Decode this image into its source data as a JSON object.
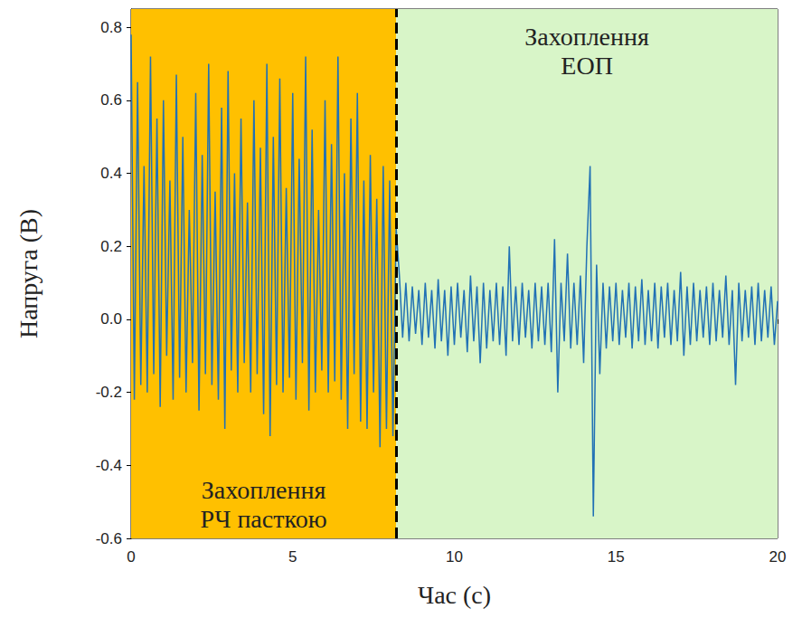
{
  "chart_data": {
    "type": "line",
    "x_label": "Час (с)",
    "y_label": "Напруга (В)",
    "xlim": [
      0,
      20
    ],
    "xticks": [
      0,
      5,
      10,
      15,
      20
    ],
    "ylim": [
      -0.6,
      0.85
    ],
    "yticks": [
      -0.6,
      -0.4,
      -0.2,
      {
        "value": 0,
        "label": "0.0"
      },
      0.2,
      0.4,
      0.6,
      0.8
    ],
    "grid": false,
    "color": "#2171b5",
    "regions": [
      {
        "label": "Захоплення РЧ пасткою",
        "start": 0,
        "end": 8.2,
        "color": "#ffc000"
      },
      {
        "label": "Захоплення ЕОП",
        "start": 8.2,
        "end": 20,
        "color": "#d8f5c8"
      }
    ],
    "divider": 8.2,
    "x": [
      0,
      0.1,
      0.2,
      0.3,
      0.4,
      0.5,
      0.6,
      0.7,
      0.8,
      0.9,
      1,
      1.1,
      1.2,
      1.3,
      1.4,
      1.5,
      1.6,
      1.7,
      1.8,
      1.9,
      2,
      2.1,
      2.2,
      2.3,
      2.4,
      2.5,
      2.6,
      2.7,
      2.8,
      2.9,
      3,
      3.1,
      3.2,
      3.3,
      3.4,
      3.5,
      3.6,
      3.7,
      3.8,
      3.9,
      4,
      4.1,
      4.2,
      4.3,
      4.4,
      4.5,
      4.6,
      4.7,
      4.8,
      4.9,
      5,
      5.1,
      5.2,
      5.3,
      5.4,
      5.5,
      5.6,
      5.7,
      5.8,
      5.9,
      6,
      6.1,
      6.2,
      6.3,
      6.4,
      6.5,
      6.6,
      6.7,
      6.8,
      6.9,
      7,
      7.1,
      7.2,
      7.3,
      7.4,
      7.5,
      7.6,
      7.7,
      7.8,
      7.9,
      8,
      8.1,
      8.2,
      8.3,
      8.4,
      8.5,
      8.6,
      8.7,
      8.8,
      8.9,
      9,
      9.1,
      9.2,
      9.3,
      9.4,
      9.5,
      9.6,
      9.7,
      9.8,
      9.9,
      10,
      10.1,
      10.2,
      10.3,
      10.4,
      10.5,
      10.6,
      10.7,
      10.8,
      10.9,
      11,
      11.1,
      11.2,
      11.3,
      11.4,
      11.5,
      11.6,
      11.7,
      11.8,
      11.9,
      12,
      12.1,
      12.2,
      12.3,
      12.4,
      12.5,
      12.6,
      12.7,
      12.8,
      12.9,
      13,
      13.1,
      13.2,
      13.3,
      13.4,
      13.5,
      13.6,
      13.7,
      13.8,
      13.9,
      14,
      14.1,
      14.2,
      14.3,
      14.4,
      14.5,
      14.6,
      14.7,
      14.8,
      14.9,
      15,
      15.1,
      15.2,
      15.3,
      15.4,
      15.5,
      15.6,
      15.7,
      15.8,
      15.9,
      16,
      16.1,
      16.2,
      16.3,
      16.4,
      16.5,
      16.6,
      16.7,
      16.8,
      16.9,
      17,
      17.1,
      17.2,
      17.3,
      17.4,
      17.5,
      17.6,
      17.7,
      17.8,
      17.9,
      18,
      18.1,
      18.2,
      18.3,
      18.4,
      18.5,
      18.6,
      18.7,
      18.8,
      18.9,
      19,
      19.1,
      19.2,
      19.3,
      19.4,
      19.5,
      19.6,
      19.7,
      19.8,
      19.9,
      20
    ],
    "values": [
      0.78,
      -0.22,
      0.65,
      -0.18,
      0.42,
      -0.2,
      0.72,
      -0.15,
      0.55,
      -0.24,
      0.6,
      -0.1,
      0.38,
      -0.22,
      0.67,
      -0.16,
      0.5,
      -0.2,
      0.3,
      -0.12,
      0.62,
      -0.25,
      0.45,
      -0.15,
      0.7,
      -0.18,
      0.35,
      -0.22,
      0.58,
      -0.3,
      0.68,
      -0.14,
      0.4,
      -0.2,
      0.55,
      -0.12,
      0.32,
      -0.2,
      0.6,
      -0.15,
      0.47,
      -0.26,
      0.7,
      -0.32,
      0.5,
      -0.18,
      0.66,
      -0.2,
      0.36,
      -0.16,
      0.62,
      -0.22,
      0.44,
      -0.12,
      0.72,
      -0.25,
      0.52,
      -0.2,
      0.3,
      -0.14,
      0.6,
      -0.2,
      0.48,
      -0.17,
      0.72,
      -0.22,
      0.4,
      -0.3,
      0.55,
      -0.15,
      0.62,
      -0.28,
      0.38,
      -0.3,
      0.45,
      -0.2,
      0.33,
      -0.35,
      0.42,
      -0.3,
      0.38,
      -0.32,
      0.25,
      0.12,
      -0.05,
      0.1,
      -0.06,
      0.09,
      -0.04,
      0.08,
      -0.07,
      0.1,
      -0.05,
      0.08,
      -0.08,
      0.11,
      -0.06,
      0.08,
      -0.1,
      0.09,
      -0.07,
      0.1,
      -0.05,
      0.08,
      -0.09,
      0.12,
      -0.06,
      0.09,
      -0.12,
      0.1,
      -0.08,
      0.08,
      -0.06,
      0.1,
      -0.07,
      0.09,
      -0.1,
      0.2,
      -0.06,
      0.09,
      -0.07,
      0.1,
      -0.05,
      0.08,
      -0.08,
      0.1,
      -0.06,
      0.09,
      -0.07,
      0.1,
      -0.09,
      0.22,
      -0.2,
      0.1,
      -0.06,
      0.18,
      -0.08,
      0.1,
      -0.07,
      0.12,
      -0.12,
      0.2,
      0.42,
      -0.54,
      0.15,
      -0.15,
      0.1,
      -0.08,
      0.09,
      -0.06,
      0.1,
      -0.07,
      0.08,
      -0.05,
      0.1,
      -0.08,
      0.09,
      -0.06,
      0.11,
      -0.07,
      0.08,
      -0.06,
      0.1,
      -0.08,
      0.09,
      -0.05,
      0.1,
      -0.07,
      0.08,
      -0.06,
      0.13,
      -0.1,
      0.09,
      -0.07,
      0.1,
      -0.06,
      0.08,
      -0.05,
      0.09,
      -0.07,
      0.1,
      -0.06,
      0.08,
      -0.05,
      0.12,
      -0.07,
      0.08,
      -0.18,
      0.1,
      -0.06,
      0.08,
      -0.05,
      0.09,
      -0.07,
      0.1,
      -0.06,
      0.08,
      -0.05,
      0.09,
      -0.07,
      0.05
    ]
  }
}
